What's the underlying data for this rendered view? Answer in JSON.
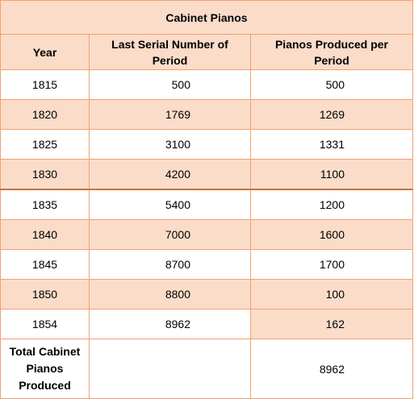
{
  "table": {
    "title": "Cabinet Pianos",
    "headers": [
      "Year",
      "Last Serial Number of Period",
      "Pianos Produced per Period"
    ],
    "rows": [
      {
        "year": "1815",
        "last_serial": "500",
        "produced": "500"
      },
      {
        "year": "1820",
        "last_serial": "1769",
        "produced": "1269"
      },
      {
        "year": "1825",
        "last_serial": "3100",
        "produced": "1331"
      },
      {
        "year": "1830",
        "last_serial": "4200",
        "produced": "1100"
      },
      {
        "year": "1835",
        "last_serial": "5400",
        "produced": "1200"
      },
      {
        "year": "1840",
        "last_serial": "7000",
        "produced": "1600"
      },
      {
        "year": "1845",
        "last_serial": "8700",
        "produced": "1700"
      },
      {
        "year": "1850",
        "last_serial": "8800",
        "produced": "100"
      },
      {
        "year": "1854",
        "last_serial": "8962",
        "produced": "162"
      }
    ],
    "total": {
      "label": "Total Cabinet Pianos Produced",
      "last_serial": "",
      "produced": "8962"
    }
  },
  "colors": {
    "header_fill": "#fbdcc9",
    "border": "#f2a170",
    "accent_border": "#c9753f"
  }
}
